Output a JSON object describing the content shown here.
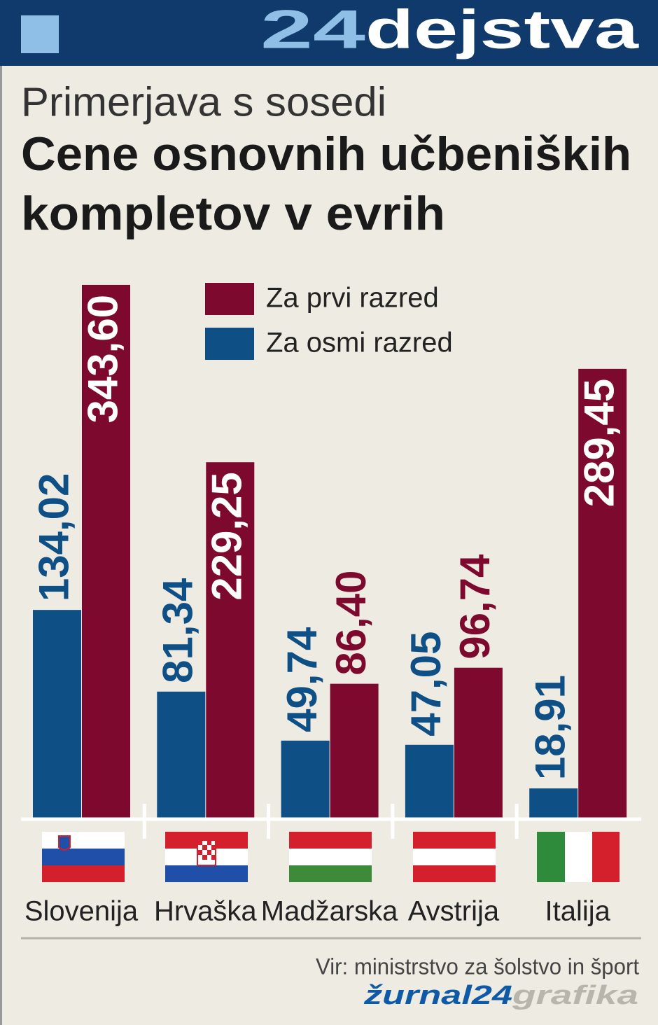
{
  "header": {
    "logo_number": "24",
    "logo_word": "dejstva"
  },
  "chart_data": {
    "type": "bar",
    "subtitle": "Primerjava s sosedi",
    "title_lines": [
      "Cene osnovnih učbeniških",
      "kompletov v evrih"
    ],
    "categories": [
      "Slovenija",
      "Hrvaška",
      "Madžarska",
      "Avstrija",
      "Italija"
    ],
    "series": [
      {
        "name": "Za prvi razred",
        "color": "#7d0a2e",
        "values": [
          343.6,
          229.25,
          86.4,
          96.74,
          289.45
        ],
        "value_labels": [
          "343,60",
          "229,25",
          "86,40",
          "96,74",
          "289,45"
        ]
      },
      {
        "name": "Za osmi razred",
        "color": "#0e4f86",
        "values": [
          134.02,
          81.34,
          49.74,
          47.05,
          18.91
        ],
        "value_labels": [
          "134,02",
          "81,34",
          "49,74",
          "47,05",
          "18,91"
        ]
      }
    ],
    "legend": "top"
  },
  "footer": {
    "source": "Vir: ministrstvo za šolstvo in šport",
    "brand_word": "žurnal24",
    "brand_suffix": "grafika"
  }
}
